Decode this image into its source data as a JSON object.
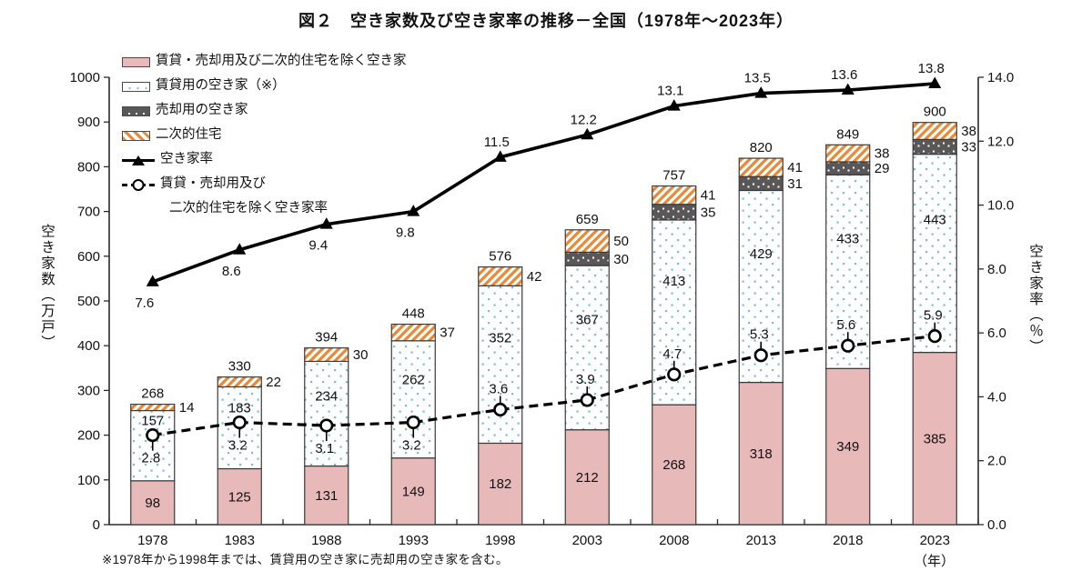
{
  "title": "図２　空き家数及び空き家率の推移－全国（1978年～2023年）",
  "footnote": "※1978年から1998年までは、賃貸用の空き家に売却用の空き家を含む。",
  "colors": {
    "bar_pink": "#e8b9b9",
    "dot_blue": "#79bdd6",
    "sale_dark": "#595757",
    "secondary_orange": "#ed8733",
    "line_black": "#000000"
  },
  "legend": [
    {
      "label": "賃貸・売却用及び二次的住宅を除く空き家",
      "swatch": "bar-pink"
    },
    {
      "label": "賃貸用の空き家（※）",
      "swatch": "bar-dots"
    },
    {
      "label": "売却用の空き家",
      "swatch": "bar-dark"
    },
    {
      "label": "二次的住宅",
      "swatch": "bar-hatch"
    },
    {
      "label": "空き家率",
      "swatch": "line-solid"
    },
    {
      "label": "賃貸・売却用及び",
      "label2": "二次的住宅を除く空き家率",
      "swatch": "line-dashed"
    }
  ],
  "axes": {
    "left": {
      "title": "空き家数（万戸）",
      "max": 1000,
      "ticks": [
        0,
        100,
        200,
        300,
        400,
        500,
        600,
        700,
        800,
        900,
        1000
      ]
    },
    "right": {
      "title": "空き家率（％）",
      "max": 14,
      "ticks": [
        "0.0",
        "2.0",
        "4.0",
        "6.0",
        "8.0",
        "10.0",
        "12.0",
        "14.0"
      ]
    },
    "x": {
      "unit": "（年）",
      "labels": [
        "1978",
        "1983",
        "1988",
        "1993",
        "1998",
        "2003",
        "2008",
        "2013",
        "2018",
        "2023"
      ]
    }
  },
  "chart_data": {
    "type": "combo-stacked-bar-line",
    "categories": [
      1978,
      1983,
      1988,
      1993,
      1998,
      2003,
      2008,
      2013,
      2018,
      2023
    ],
    "totals": [
      268,
      330,
      394,
      448,
      576,
      659,
      757,
      820,
      849,
      900
    ],
    "series": [
      {
        "name": "賃貸・売却用及び二次的住宅を除く空き家",
        "type": "bar",
        "values": [
          98,
          125,
          131,
          149,
          182,
          212,
          268,
          318,
          349,
          385
        ]
      },
      {
        "name": "賃貸用の空き家（※）",
        "type": "bar",
        "values": [
          157,
          183,
          234,
          262,
          352,
          367,
          413,
          429,
          433,
          443
        ]
      },
      {
        "name": "売却用の空き家",
        "type": "bar",
        "values": [
          null,
          null,
          null,
          null,
          null,
          30,
          35,
          31,
          29,
          33
        ]
      },
      {
        "name": "二次的住宅",
        "type": "bar",
        "values": [
          14,
          22,
          30,
          37,
          42,
          50,
          41,
          41,
          38,
          38
        ]
      },
      {
        "name": "空き家率",
        "type": "line",
        "axis": "right",
        "values": [
          7.6,
          8.6,
          9.4,
          9.8,
          11.5,
          12.2,
          13.1,
          13.5,
          13.6,
          13.8
        ]
      },
      {
        "name": "賃貸・売却用及び二次的住宅を除く空き家率",
        "type": "line-dashed",
        "axis": "right",
        "values": [
          2.8,
          3.2,
          3.1,
          3.2,
          3.6,
          3.9,
          4.7,
          5.3,
          5.6,
          5.9
        ]
      }
    ],
    "xlabel": "年",
    "ylabel_left": "空き家数（万戸）",
    "ylabel_right": "空き家率（％）",
    "ylim_left": [
      0,
      1000
    ],
    "ylim_right": [
      0,
      14
    ],
    "grid": false,
    "legend_position": "top-left"
  }
}
